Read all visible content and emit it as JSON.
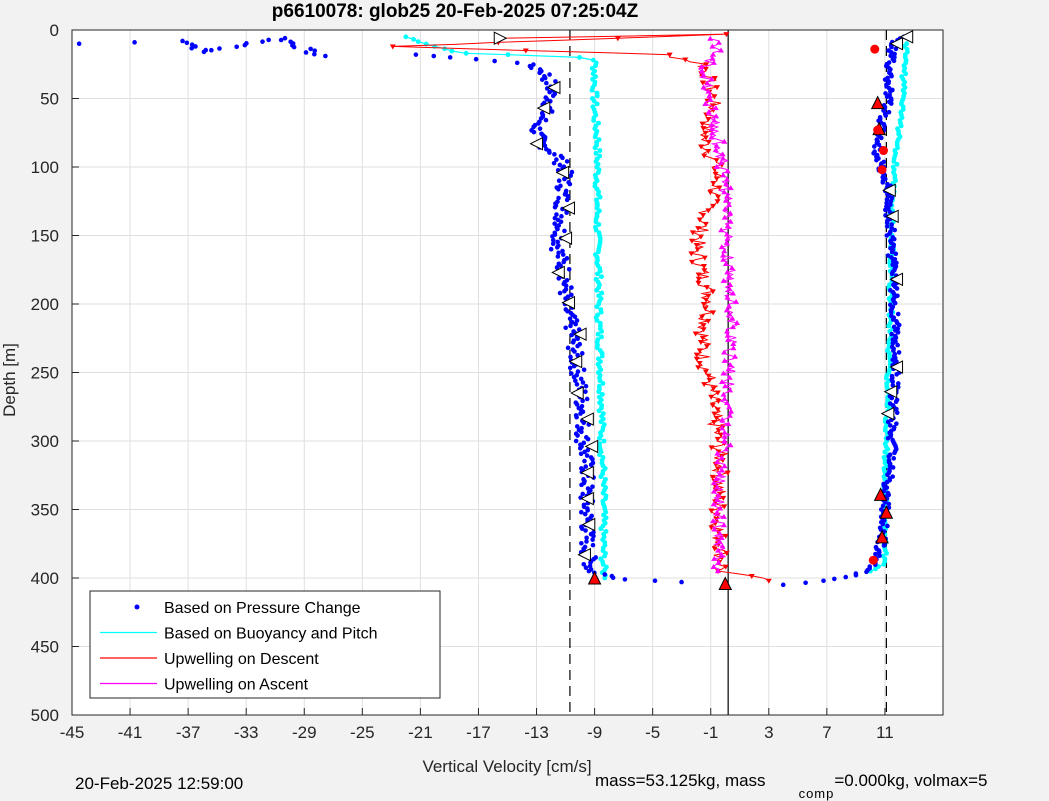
{
  "chart_data": {
    "type": "scatter",
    "title": "p6610078: glob25 20-Feb-2025 07:25:04Z",
    "xlabel": "Vertical Velocity [cm/s]",
    "ylabel": "Depth [m]",
    "xlim": [
      -45,
      15
    ],
    "ylim": [
      0,
      500
    ],
    "y_reversed": true,
    "grid": true,
    "xticks": [
      -45,
      -41,
      -37,
      -33,
      -29,
      -25,
      -21,
      -17,
      -13,
      -9,
      -5,
      -1,
      3,
      7,
      11
    ],
    "yticks": [
      0,
      50,
      100,
      150,
      200,
      250,
      300,
      350,
      400,
      450,
      500
    ],
    "reference_lines": [
      {
        "x": -10.7,
        "style": "dashed"
      },
      {
        "x": 0.2,
        "style": "solid"
      },
      {
        "x": 11.1,
        "style": "dashed"
      }
    ],
    "legend": {
      "placement": "bottom-left",
      "entries": [
        {
          "label": "Based on Pressure Change",
          "color": "#0000ff",
          "marker": "dot"
        },
        {
          "label": "Based on Buoyancy and Pitch",
          "color": "#00ffff",
          "marker": "line"
        },
        {
          "label": "Upwelling on Descent",
          "color": "#ff0000",
          "marker": "line"
        },
        {
          "label": "Upwelling on Ascent",
          "color": "#ff00ff",
          "marker": "line"
        }
      ]
    },
    "series": [
      {
        "name": "Based on Pressure Change",
        "color": "#0000ff",
        "descent": [
          [
            -44.5,
            10
          ],
          [
            -37,
            8
          ],
          [
            -36,
            16
          ],
          [
            -30.5,
            6
          ],
          [
            -28,
            19
          ],
          [
            -21,
            18
          ],
          [
            -19,
            20
          ],
          [
            -14,
            24
          ],
          [
            -12.5,
            30
          ],
          [
            -12,
            40
          ],
          [
            -12,
            52
          ],
          [
            -12.5,
            62
          ],
          [
            -13,
            72
          ],
          [
            -12.8,
            82
          ],
          [
            -11.5,
            92
          ],
          [
            -11,
            105
          ],
          [
            -11.2,
            120
          ],
          [
            -11.3,
            140
          ],
          [
            -11.5,
            160
          ],
          [
            -11,
            180
          ],
          [
            -11,
            200
          ],
          [
            -10.5,
            220
          ],
          [
            -10.3,
            240
          ],
          [
            -10,
            260
          ],
          [
            -9.8,
            280
          ],
          [
            -9.8,
            300
          ],
          [
            -9.5,
            320
          ],
          [
            -9.6,
            340
          ],
          [
            -9.5,
            360
          ],
          [
            -9.5,
            380
          ],
          [
            -9.2,
            395
          ],
          [
            -7,
            401
          ],
          [
            -3,
            403
          ],
          [
            0,
            404
          ]
        ],
        "ascent": [
          [
            4,
            405
          ],
          [
            7,
            402
          ],
          [
            9,
            398
          ],
          [
            10,
            393
          ],
          [
            10.5,
            385
          ],
          [
            10.8,
            370
          ],
          [
            11,
            350
          ],
          [
            11.2,
            330
          ],
          [
            11.5,
            310
          ],
          [
            11.5,
            290
          ],
          [
            11.6,
            270
          ],
          [
            11.8,
            250
          ],
          [
            11.8,
            230
          ],
          [
            11.7,
            210
          ],
          [
            11.6,
            190
          ],
          [
            11.5,
            170
          ],
          [
            11.4,
            150
          ],
          [
            11.3,
            130
          ],
          [
            11.2,
            115
          ],
          [
            10.8,
            100
          ],
          [
            10.5,
            90
          ],
          [
            10.6,
            80
          ],
          [
            10.7,
            70
          ],
          [
            11,
            60
          ],
          [
            11.3,
            50
          ],
          [
            11.2,
            40
          ],
          [
            11.3,
            30
          ],
          [
            11.4,
            20
          ],
          [
            11.6,
            10
          ],
          [
            12.3,
            5
          ]
        ]
      },
      {
        "name": "Based on Buoyancy and Pitch",
        "color": "#00ffff",
        "descent": [
          [
            -22,
            5
          ],
          [
            -20,
            12
          ],
          [
            -18,
            17
          ],
          [
            -15,
            18
          ],
          [
            -10,
            20
          ],
          [
            -9,
            22
          ],
          [
            -9,
            40
          ],
          [
            -9,
            60
          ],
          [
            -8.8,
            80
          ],
          [
            -8.8,
            100
          ],
          [
            -8.8,
            120
          ],
          [
            -8.8,
            150
          ],
          [
            -8.7,
            180
          ],
          [
            -8.7,
            210
          ],
          [
            -8.6,
            240
          ],
          [
            -8.5,
            270
          ],
          [
            -8.5,
            300
          ],
          [
            -8.4,
            330
          ],
          [
            -8.4,
            360
          ],
          [
            -8.4,
            390
          ],
          [
            -8.3,
            400
          ]
        ],
        "ascent": [
          [
            10,
            395
          ],
          [
            11,
            390
          ],
          [
            11,
            360
          ],
          [
            11,
            330
          ],
          [
            11.1,
            300
          ],
          [
            11.2,
            270
          ],
          [
            11.2,
            250
          ],
          [
            11.4,
            220
          ],
          [
            11.4,
            190
          ],
          [
            11.5,
            160
          ],
          [
            11.5,
            130
          ],
          [
            11.6,
            110
          ],
          [
            11.8,
            90
          ],
          [
            12,
            70
          ],
          [
            12.2,
            50
          ],
          [
            12.3,
            30
          ],
          [
            12.5,
            10
          ]
        ]
      },
      {
        "name": "Upwelling on Descent",
        "color": "#ff0000",
        "values": [
          [
            -15.5,
            6
          ],
          [
            0.5,
            3
          ],
          [
            -23,
            12
          ],
          [
            -4,
            18
          ],
          [
            -1.5,
            25
          ],
          [
            -1.2,
            35
          ],
          [
            -1,
            45
          ],
          [
            -0.8,
            55
          ],
          [
            -1,
            65
          ],
          [
            -1.5,
            80
          ],
          [
            -0.8,
            95
          ],
          [
            -0.5,
            110
          ],
          [
            -1,
            125
          ],
          [
            -1.5,
            140
          ],
          [
            -2,
            160
          ],
          [
            -1.5,
            180
          ],
          [
            -1,
            200
          ],
          [
            -1.5,
            220
          ],
          [
            -1.5,
            240
          ],
          [
            -1,
            260
          ],
          [
            -0.8,
            280
          ],
          [
            -0.5,
            300
          ],
          [
            -0.3,
            320
          ],
          [
            -0.5,
            340
          ],
          [
            -0.5,
            360
          ],
          [
            -0.3,
            380
          ],
          [
            -0.2,
            395
          ],
          [
            3,
            402
          ]
        ]
      },
      {
        "name": "Upwelling on Ascent",
        "color": "#ff00ff",
        "values": [
          [
            -0.5,
            395
          ],
          [
            -0.3,
            380
          ],
          [
            -0.5,
            360
          ],
          [
            -0.5,
            340
          ],
          [
            -0.3,
            320
          ],
          [
            0,
            300
          ],
          [
            0,
            280
          ],
          [
            0.2,
            260
          ],
          [
            0.3,
            240
          ],
          [
            0.5,
            220
          ],
          [
            0.5,
            200
          ],
          [
            0.3,
            180
          ],
          [
            0.2,
            160
          ],
          [
            0,
            140
          ],
          [
            0,
            120
          ],
          [
            -0.2,
            100
          ],
          [
            -0.5,
            80
          ],
          [
            -1,
            60
          ],
          [
            -1,
            45
          ],
          [
            -1.5,
            30
          ],
          [
            -0.5,
            15
          ],
          [
            -1,
            5
          ]
        ]
      }
    ],
    "triangle_markers": [
      {
        "x": -15.5,
        "y": 6,
        "dir": "right"
      },
      {
        "x": -11.8,
        "y": 42,
        "dir": "left"
      },
      {
        "x": -12.5,
        "y": 57,
        "dir": "left"
      },
      {
        "x": -13,
        "y": 83,
        "dir": "left"
      },
      {
        "x": -11.2,
        "y": 104,
        "dir": "left"
      },
      {
        "x": -10.8,
        "y": 130,
        "dir": "left"
      },
      {
        "x": -11,
        "y": 152,
        "dir": "left"
      },
      {
        "x": -11.5,
        "y": 177,
        "dir": "left"
      },
      {
        "x": -10.8,
        "y": 199,
        "dir": "left"
      },
      {
        "x": -10,
        "y": 222,
        "dir": "left"
      },
      {
        "x": -10.3,
        "y": 242,
        "dir": "left"
      },
      {
        "x": -10.2,
        "y": 265,
        "dir": "left"
      },
      {
        "x": -9.5,
        "y": 284,
        "dir": "left"
      },
      {
        "x": -9.2,
        "y": 304,
        "dir": "left"
      },
      {
        "x": -9.5,
        "y": 323,
        "dir": "left"
      },
      {
        "x": -9.5,
        "y": 342,
        "dir": "left"
      },
      {
        "x": -9.4,
        "y": 361,
        "dir": "left"
      },
      {
        "x": -9.7,
        "y": 383,
        "dir": "left"
      },
      {
        "x": -9,
        "y": 400,
        "dir": "up"
      },
      {
        "x": 0,
        "y": 404,
        "dir": "up"
      },
      {
        "x": 10.8,
        "y": 370,
        "dir": "up"
      },
      {
        "x": 11.1,
        "y": 352,
        "dir": "up"
      },
      {
        "x": 10.7,
        "y": 339,
        "dir": "up"
      },
      {
        "x": 11.2,
        "y": 280,
        "dir": "left"
      },
      {
        "x": 11.4,
        "y": 264,
        "dir": "left"
      },
      {
        "x": 11.8,
        "y": 246,
        "dir": "left"
      },
      {
        "x": 11.8,
        "y": 182,
        "dir": "left"
      },
      {
        "x": 11.5,
        "y": 136,
        "dir": "left"
      },
      {
        "x": 11.3,
        "y": 117,
        "dir": "left"
      },
      {
        "x": 10.6,
        "y": 72,
        "dir": "up"
      },
      {
        "x": 10.5,
        "y": 53,
        "dir": "up"
      },
      {
        "x": 11.8,
        "y": 10,
        "dir": "left"
      },
      {
        "x": 12.5,
        "y": 5,
        "dir": "left"
      }
    ],
    "red_dots": [
      [
        10.3,
        14
      ],
      [
        10.9,
        88
      ],
      [
        10.8,
        102
      ],
      [
        10.5,
        73
      ],
      [
        10.2,
        387
      ]
    ]
  },
  "footer": {
    "timestamp": "20-Feb-2025 12:59:00",
    "mass_text": "mass=53.125kg, mass",
    "comp_sub": "comp",
    "mass_rest": "=0.000kg, volmax=5"
  }
}
